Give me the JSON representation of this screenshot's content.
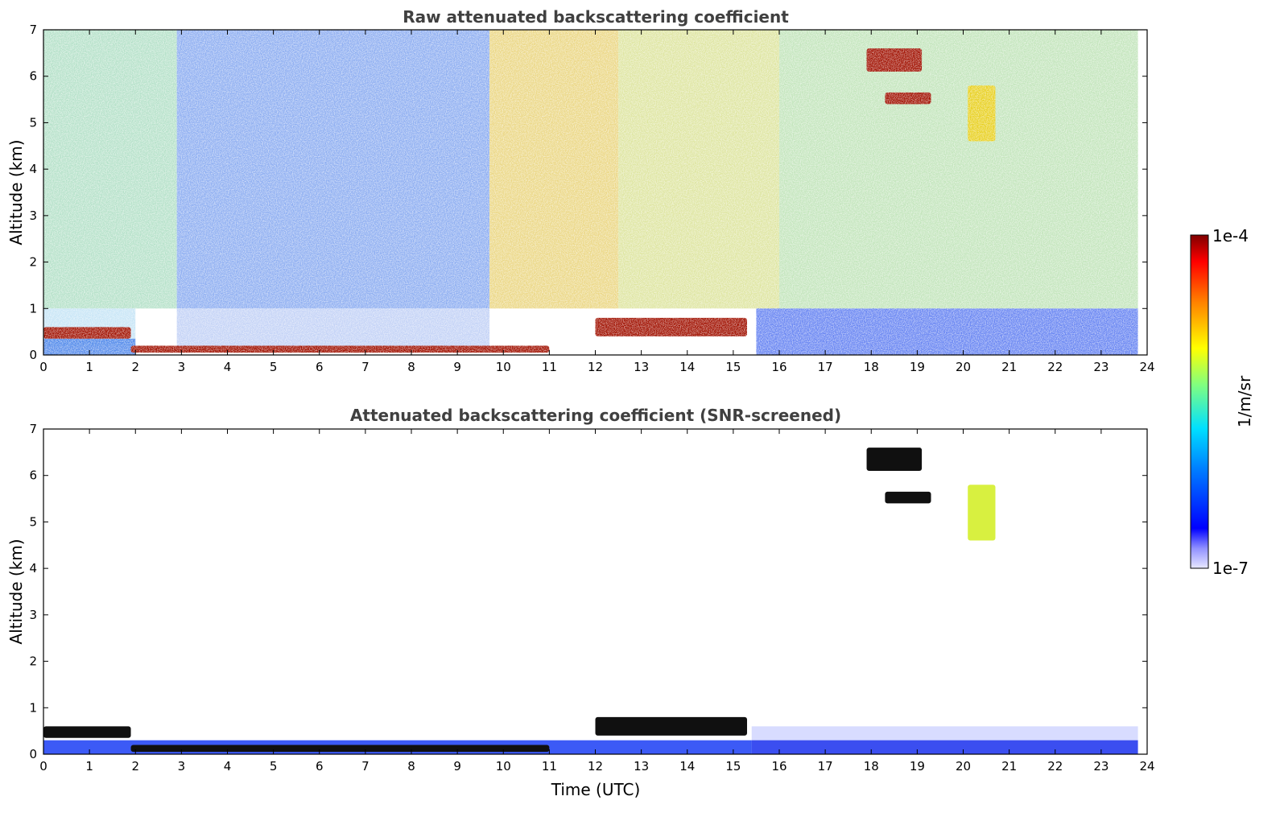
{
  "chart_data": [
    {
      "type": "heatmap",
      "title": "Raw attenuated backscattering coefficient",
      "ylabel": "Altitude (km)",
      "xlim": [
        0,
        24
      ],
      "ylim": [
        0,
        7
      ],
      "x_ticks": [
        "0",
        "1",
        "2",
        "3",
        "4",
        "5",
        "6",
        "7",
        "8",
        "9",
        "10",
        "11",
        "12",
        "13",
        "14",
        "15",
        "16",
        "17",
        "18",
        "19",
        "20",
        "21",
        "22",
        "23",
        "24"
      ],
      "y_ticks": [
        "0",
        "1",
        "2",
        "3",
        "4",
        "5",
        "6",
        "7"
      ],
      "colormap": "jet",
      "layers": [
        {
          "x_start": 0,
          "x_end": 1.9,
          "altitude_bottom": 0.35,
          "altitude_top": 0.6
        },
        {
          "x_start": 1.9,
          "x_end": 11,
          "altitude_bottom": 0.05,
          "altitude_top": 0.2
        },
        {
          "x_start": 12,
          "x_end": 15.3,
          "altitude_bottom": 0.4,
          "altitude_top": 0.8
        },
        {
          "x_start": 17.9,
          "x_end": 19.1,
          "altitude_bottom": 6.1,
          "altitude_top": 6.6
        },
        {
          "x_start": 18.3,
          "x_end": 19.3,
          "altitude_bottom": 5.4,
          "altitude_top": 5.65
        },
        {
          "x_start": 20.1,
          "x_end": 20.7,
          "altitude_bottom": 4.6,
          "altitude_top": 5.8
        }
      ]
    },
    {
      "type": "heatmap",
      "title": "Attenuated backscattering coefficient (SNR-screened)",
      "xlabel": "Time (UTC)",
      "ylabel": "Altitude (km)",
      "xlim": [
        0,
        24
      ],
      "ylim": [
        0,
        7
      ],
      "x_ticks": [
        "0",
        "1",
        "2",
        "3",
        "4",
        "5",
        "6",
        "7",
        "8",
        "9",
        "10",
        "11",
        "12",
        "13",
        "14",
        "15",
        "16",
        "17",
        "18",
        "19",
        "20",
        "21",
        "22",
        "23",
        "24"
      ],
      "y_ticks": [
        "0",
        "1",
        "2",
        "3",
        "4",
        "5",
        "6",
        "7"
      ],
      "colormap": "jet",
      "layers": [
        {
          "x_start": 0,
          "x_end": 1.9,
          "altitude_bottom": 0.35,
          "altitude_top": 0.6
        },
        {
          "x_start": 1.9,
          "x_end": 11,
          "altitude_bottom": 0.05,
          "altitude_top": 0.2
        },
        {
          "x_start": 12,
          "x_end": 15.3,
          "altitude_bottom": 0.4,
          "altitude_top": 0.8
        },
        {
          "x_start": 17.9,
          "x_end": 19.1,
          "altitude_bottom": 6.1,
          "altitude_top": 6.6
        },
        {
          "x_start": 18.3,
          "x_end": 19.3,
          "altitude_bottom": 5.4,
          "altitude_top": 5.65
        },
        {
          "x_start": 20.1,
          "x_end": 20.7,
          "altitude_bottom": 4.6,
          "altitude_top": 5.8
        }
      ]
    }
  ],
  "colorbar": {
    "label": "1/m/sr",
    "max_label": "1e-4",
    "min_label": "1e-7",
    "scale": "log",
    "range": [
      1e-07,
      0.0001
    ],
    "colors": [
      "#00007f",
      "#0000ff",
      "#007fff",
      "#00ffff",
      "#7fff7f",
      "#ffff00",
      "#ff7f00",
      "#ff0000",
      "#7f0000"
    ]
  }
}
